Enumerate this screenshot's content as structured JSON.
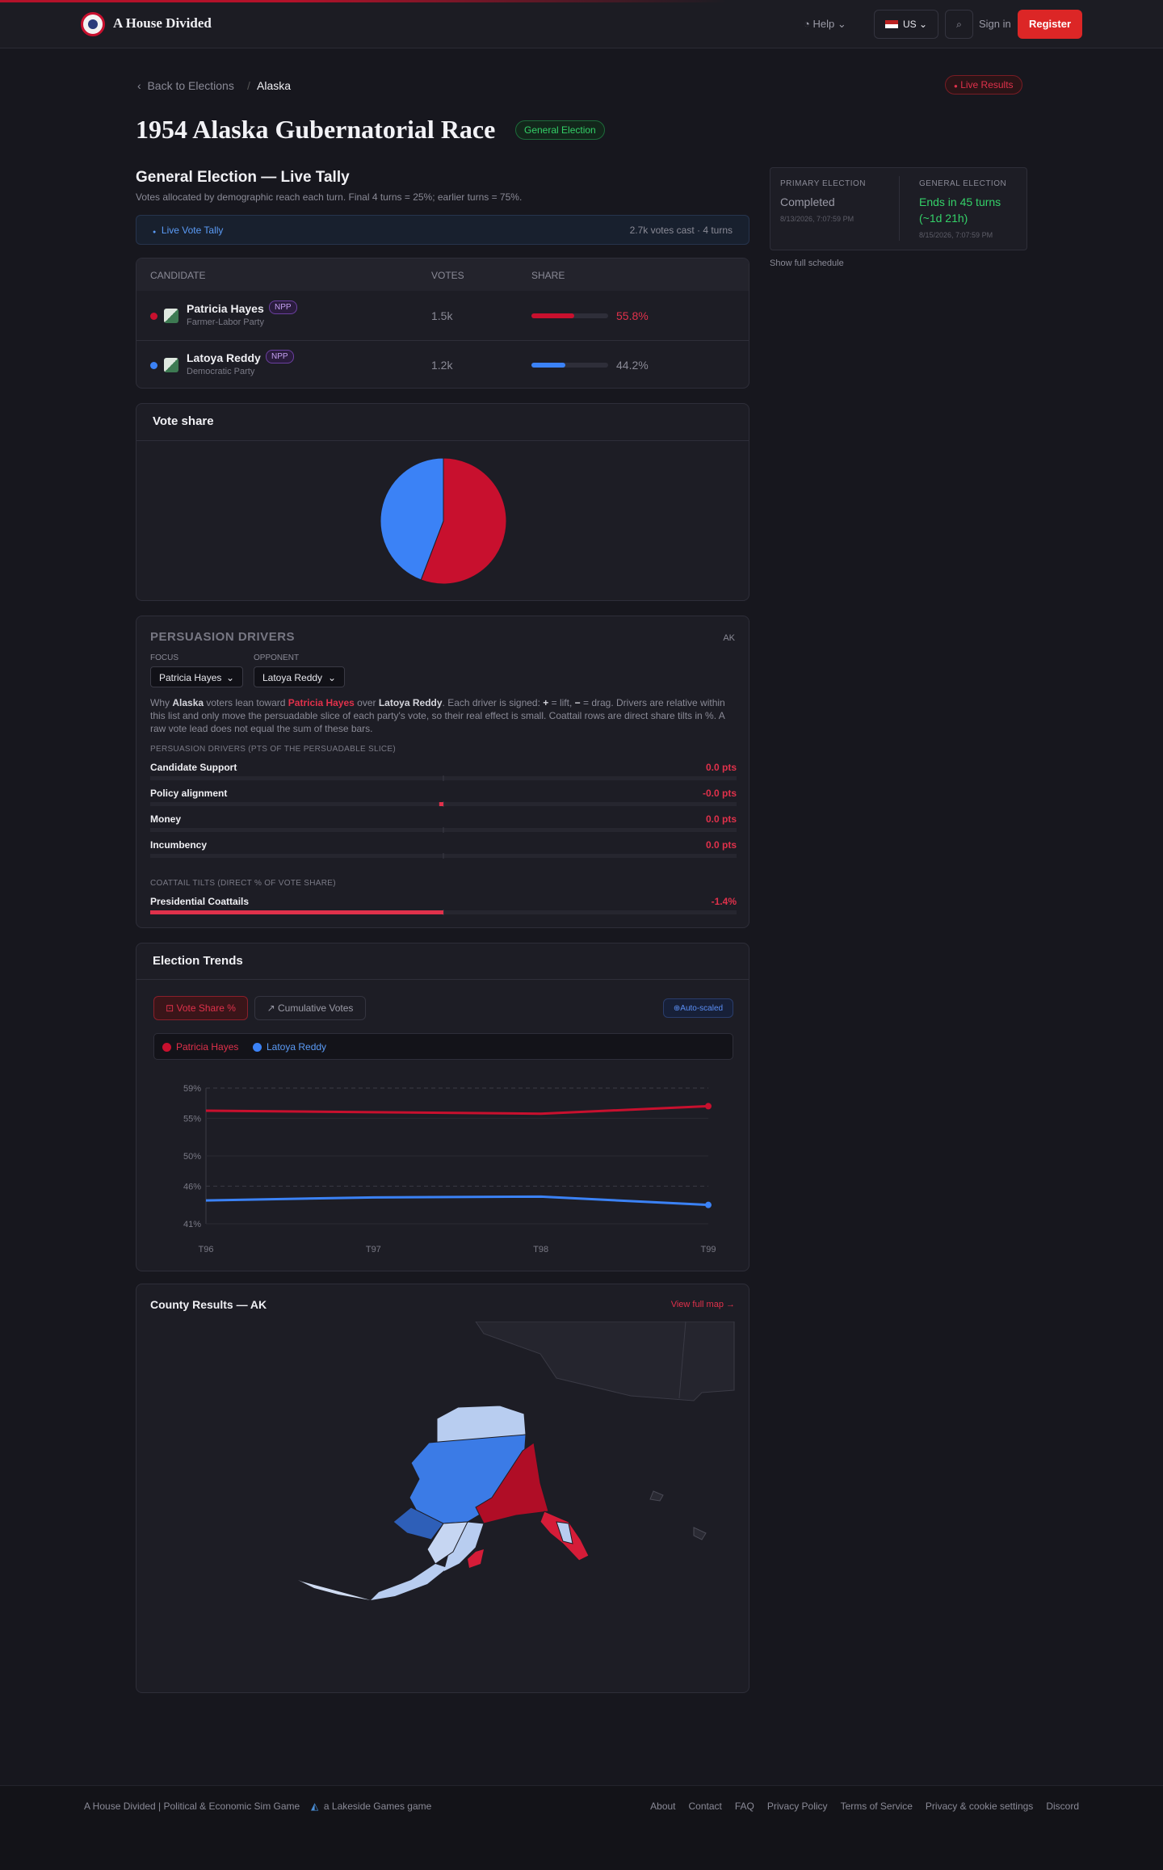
{
  "header": {
    "brand": "A House Divided",
    "help": "Help",
    "region": "US",
    "sign_in": "Sign in",
    "register": "Register"
  },
  "breadcrumb": {
    "back": "Back to Elections",
    "separator": "/",
    "current": "Alaska"
  },
  "live_badge": "Live Results",
  "title": "1954 Alaska Gubernatorial Race",
  "type_badge": "General Election",
  "tally": {
    "heading": "General Election — Live Tally",
    "note": "Votes allocated by demographic reach each turn. Final 4 turns = 25%; earlier turns = 75%.",
    "live_label": "Live Vote Tally",
    "summary": "2.7k votes cast · 4 turns",
    "columns": [
      "CANDIDATE",
      "VOTES",
      "SHARE"
    ],
    "candidates": [
      {
        "name": "Patricia Hayes",
        "tag": "NPP",
        "party": "Farmer-Labor Party",
        "color": "#c8102e",
        "votes": "1.5k",
        "share": 55.8,
        "share_label": "55.8%"
      },
      {
        "name": "Latoya Reddy",
        "tag": "NPP",
        "party": "Democratic Party",
        "color": "#3b82f6",
        "votes": "1.2k",
        "share": 44.2,
        "share_label": "44.2%"
      }
    ]
  },
  "schedule": {
    "primary": {
      "label": "PRIMARY ELECTION",
      "status": "Completed",
      "date": "8/13/2026, 7:07:59 PM"
    },
    "general": {
      "label": "GENERAL ELECTION",
      "status": "Ends in 45 turns (~1d 21h)",
      "date": "8/15/2026, 7:07:59 PM"
    },
    "link": "Show full schedule"
  },
  "persuasion": {
    "heading": "PERSUASION DRIVERS",
    "state": "AK",
    "focus_label": "FOCUS",
    "focus": "Patricia Hayes",
    "opponent_label": "OPPONENT",
    "opponent": "Latoya Reddy",
    "description": [
      "Why ",
      "Alaska",
      " voters lean toward ",
      "Patricia Hayes",
      " over ",
      "Latoya Reddy",
      ". Each driver is signed: ",
      "+",
      " = lift, ",
      "−",
      " = drag. Drivers are relative within this list and only move the persuadable slice of each party's vote, so their real effect is small. Coattail rows are direct share tilts in %. A raw vote lead does not equal the sum of these bars."
    ]
  },
  "trends": {
    "buttons": [
      "Vote Share %",
      "Cumulative Votes"
    ],
    "scale_badge": "Auto-scaled"
  },
  "county": {
    "heading": "County Results — AK",
    "link": "View full map →"
  },
  "footer": {
    "left": "A House Divided | Political & Economic Sim Game",
    "maker": "a Lakeside Games game",
    "links": [
      "About",
      "Contact",
      "FAQ",
      "Privacy Policy",
      "Terms of Service",
      "Privacy & cookie settings",
      "Discord"
    ]
  },
  "chart_data": [
    {
      "type": "pie",
      "title": "Vote share",
      "categories": [
        "Patricia Hayes",
        "Latoya Reddy"
      ],
      "values": [
        55.8,
        44.2
      ],
      "colors": [
        "#c8102e",
        "#3b82f6"
      ]
    },
    {
      "type": "bar",
      "title": "PERSUASION DRIVERS (PTS OF THE PERSUADABLE SLICE)",
      "categories": [
        "Candidate Support",
        "Policy alignment",
        "Money",
        "Incumbency"
      ],
      "values": [
        0,
        -0.02,
        0,
        0
      ],
      "value_labels": [
        "0.0 pts",
        "-0.0 pts",
        "0.0 pts",
        "0.0 pts"
      ],
      "color": "#e0314b"
    },
    {
      "type": "bar",
      "title": "COATTAIL TILTS (DIRECT % OF VOTE SHARE)",
      "categories": [
        "Presidential Coattails"
      ],
      "values": [
        -1.4
      ],
      "value_labels": [
        "-1.4%"
      ],
      "color": "#e0314b"
    },
    {
      "type": "line",
      "title": "Election Trends",
      "x": [
        "T96",
        "T97",
        "T98",
        "T99"
      ],
      "series": [
        {
          "name": "Patricia Hayes",
          "color": "#c8102e",
          "values": [
            56.0,
            55.8,
            55.6,
            56.6
          ]
        },
        {
          "name": "Latoya Reddy",
          "color": "#3b82f6",
          "values": [
            44.1,
            44.5,
            44.6,
            43.5
          ]
        }
      ],
      "ylim": [
        41,
        59
      ],
      "yticks": [
        {
          "value": 59,
          "label": "59%"
        },
        {
          "value": 55,
          "label": "55%"
        },
        {
          "value": 50,
          "label": "50%"
        },
        {
          "value": 46,
          "label": "46%"
        },
        {
          "value": 41,
          "label": "41%"
        }
      ],
      "grid": true
    }
  ]
}
